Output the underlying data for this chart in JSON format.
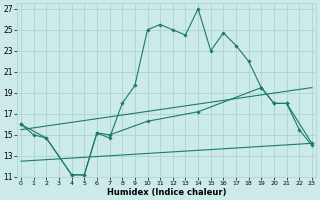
{
  "xlabel": "Humidex (Indice chaleur)",
  "background_color": "#cceae7",
  "grid_color": "#aad4d0",
  "line_color": "#1a7a6e",
  "x_ticks": [
    0,
    1,
    2,
    3,
    4,
    5,
    6,
    7,
    8,
    9,
    10,
    11,
    12,
    13,
    14,
    15,
    16,
    17,
    18,
    19,
    20,
    21,
    22,
    23
  ],
  "ylim": [
    11,
    27.5
  ],
  "xlim": [
    -0.3,
    23.3
  ],
  "y_ticks": [
    11,
    13,
    15,
    17,
    19,
    21,
    23,
    25,
    27
  ],
  "line1_x": [
    0,
    1,
    2,
    4,
    5,
    6,
    7,
    8,
    9,
    10,
    11,
    12,
    13,
    14,
    15,
    16,
    17,
    18,
    19,
    20,
    21,
    22,
    23
  ],
  "line1_y": [
    16.0,
    15.0,
    14.7,
    11.2,
    11.2,
    15.2,
    14.7,
    18.0,
    19.7,
    25.0,
    25.5,
    25.0,
    24.5,
    27.0,
    23.0,
    24.7,
    23.5,
    22.0,
    19.5,
    18.0,
    18.0,
    15.5,
    14.0
  ],
  "line2_x": [
    0,
    2,
    4,
    5,
    6,
    7,
    10,
    14,
    19,
    20,
    21,
    23
  ],
  "line2_y": [
    16.0,
    14.7,
    11.2,
    11.2,
    15.2,
    15.0,
    16.3,
    17.2,
    19.5,
    18.0,
    18.0,
    14.2
  ],
  "line3_x": [
    0,
    23
  ],
  "line3_y": [
    15.5,
    19.5
  ],
  "line4_x": [
    0,
    23
  ],
  "line4_y": [
    12.5,
    14.2
  ]
}
